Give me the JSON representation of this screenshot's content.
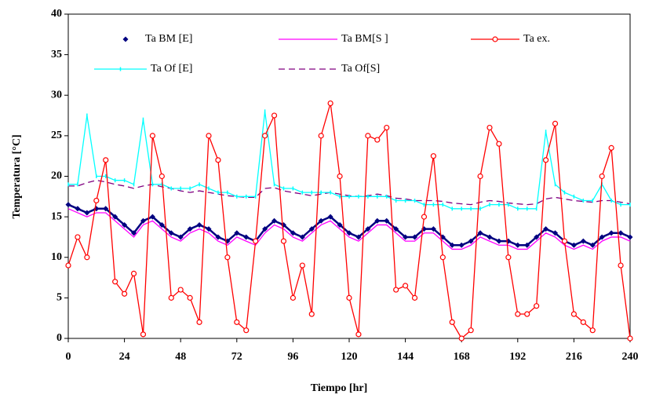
{
  "chart_data": {
    "type": "line",
    "x_label": "Tiempo [hr]",
    "y_label": "Temperatura [°C]",
    "xlim": [
      0,
      240
    ],
    "xticks": [
      0,
      24,
      48,
      72,
      96,
      120,
      144,
      168,
      192,
      216,
      240
    ],
    "ylim": [
      0,
      40
    ],
    "yticks": [
      0,
      5,
      10,
      15,
      20,
      25,
      30,
      35,
      40
    ],
    "x": [
      0,
      4,
      8,
      12,
      16,
      20,
      24,
      28,
      32,
      36,
      40,
      44,
      48,
      52,
      56,
      60,
      64,
      68,
      72,
      76,
      80,
      84,
      88,
      92,
      96,
      100,
      104,
      108,
      112,
      116,
      120,
      124,
      128,
      132,
      136,
      140,
      144,
      148,
      152,
      156,
      160,
      164,
      168,
      172,
      176,
      180,
      184,
      188,
      192,
      196,
      200,
      204,
      208,
      212,
      216,
      220,
      224,
      228,
      232,
      236,
      240
    ],
    "series": [
      {
        "name": "Ta BM [E]",
        "color": "#000080",
        "marker": "diamond",
        "dash": false,
        "values": [
          16.5,
          16,
          15.5,
          16,
          16,
          15,
          14,
          13,
          14.5,
          15,
          14,
          13,
          12.5,
          13.5,
          14,
          13.5,
          12.5,
          12,
          13,
          12.5,
          12,
          13.5,
          14.5,
          14,
          13,
          12.5,
          13.5,
          14.5,
          15,
          14,
          13,
          12.5,
          13.5,
          14.5,
          14.5,
          13.5,
          12.5,
          12.5,
          13.5,
          13.5,
          12.5,
          11.5,
          11.5,
          12,
          13,
          12.5,
          12,
          12,
          11.5,
          11.5,
          12.5,
          13.5,
          13,
          12,
          11.5,
          12,
          11.5,
          12.5,
          13,
          13,
          12.5
        ]
      },
      {
        "name": "Ta BM[S ]",
        "color": "#ff00ff",
        "marker": "none",
        "dash": false,
        "values": [
          16,
          15.5,
          15,
          15.5,
          15.5,
          14.5,
          13.5,
          12.5,
          14,
          14.5,
          13.5,
          12.5,
          12,
          13,
          13.5,
          13,
          12,
          11.5,
          12.5,
          12,
          11.5,
          13,
          14,
          13.5,
          12.5,
          12,
          13,
          14,
          14.5,
          13.5,
          12.5,
          12,
          13,
          14,
          14,
          13,
          12,
          12,
          13,
          13,
          12,
          11,
          11,
          11.5,
          12.5,
          12,
          11.5,
          11.5,
          11,
          11,
          12,
          13,
          12.5,
          11.5,
          11,
          11.5,
          11,
          12,
          12.5,
          12.5,
          12
        ]
      },
      {
        "name": "Ta ex.",
        "color": "#ff0000",
        "marker": "circle",
        "dash": false,
        "values": [
          9,
          12.5,
          10,
          17,
          22,
          7,
          5.5,
          8,
          0.5,
          25,
          20,
          5,
          6,
          5,
          2,
          25,
          22,
          10,
          2,
          1,
          12,
          25,
          27.5,
          12,
          5,
          9,
          3,
          25,
          29,
          20,
          5,
          0.5,
          25,
          24.5,
          26,
          6,
          6.5,
          5,
          15,
          22.5,
          10,
          2,
          0,
          1,
          20,
          26,
          24,
          10,
          3,
          3,
          4,
          22,
          26.5,
          12,
          3,
          2,
          1,
          20,
          23.5,
          9,
          0
        ]
      },
      {
        "name": "Ta Of [E]",
        "color": "#00ffff",
        "marker": "tick",
        "dash": false,
        "values": [
          19,
          19,
          27.5,
          20,
          20,
          19.5,
          19.5,
          19,
          27,
          19,
          19,
          18.5,
          18.5,
          18.5,
          19,
          18.5,
          18,
          18,
          17.5,
          17.5,
          17.5,
          28,
          19,
          18.5,
          18.5,
          18,
          18,
          18,
          18,
          17.5,
          17.5,
          17.5,
          17.5,
          17.5,
          17.5,
          17,
          17,
          17,
          16.5,
          16.5,
          16.5,
          16,
          16,
          16,
          16,
          16.5,
          16.5,
          16.5,
          16,
          16,
          16,
          25.5,
          19,
          18,
          17.5,
          17,
          17,
          19,
          17,
          16.5,
          16.5
        ]
      },
      {
        "name": "Ta Of[S]",
        "color": "#800080",
        "marker": "none",
        "dash": true,
        "values": [
          18.8,
          18.8,
          19.2,
          19.5,
          19.3,
          19,
          18.8,
          18.5,
          18.8,
          19,
          18.7,
          18.5,
          18.2,
          18,
          18.2,
          18,
          17.8,
          17.6,
          17.5,
          17.4,
          17.4,
          18.5,
          18.6,
          18.2,
          18,
          17.8,
          17.6,
          17.8,
          18,
          17.8,
          17.6,
          17.5,
          17.6,
          17.8,
          17.6,
          17.3,
          17.2,
          17,
          17,
          17,
          16.9,
          16.7,
          16.6,
          16.5,
          16.8,
          17,
          16.9,
          16.7,
          16.6,
          16.5,
          16.6,
          17.2,
          17.4,
          17.2,
          17,
          16.9,
          16.8,
          17,
          17,
          16.8,
          16.6
        ]
      }
    ]
  }
}
